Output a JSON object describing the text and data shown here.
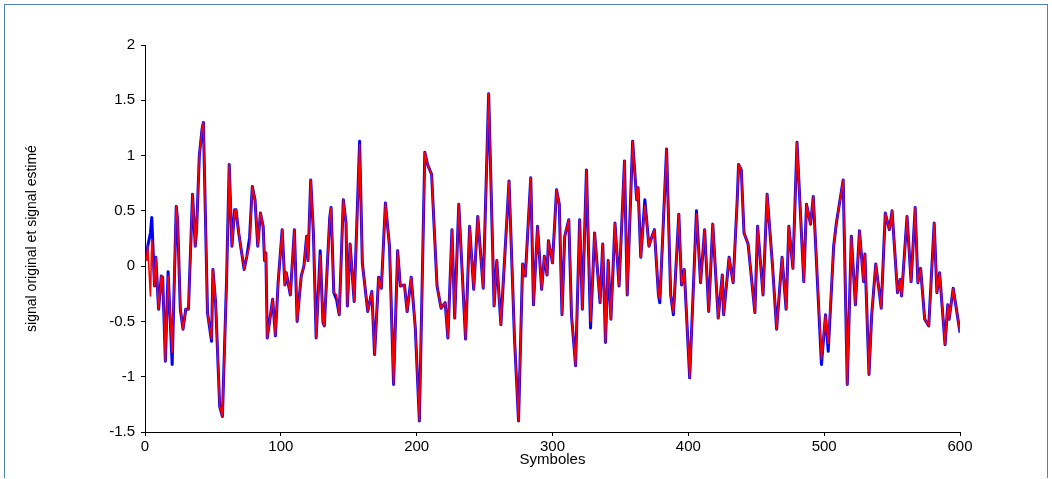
{
  "chart_data": {
    "type": "line",
    "xlabel": "Symboles",
    "ylabel": "signal original et signal estimé",
    "x": [
      1,
      2,
      4,
      5,
      7,
      8,
      10,
      12,
      13,
      15,
      17,
      20,
      23,
      24,
      26,
      28,
      30,
      32,
      35,
      37,
      38,
      40,
      42,
      43,
      46,
      49,
      50,
      52,
      55,
      57,
      60,
      62,
      64,
      66,
      67,
      69,
      73,
      75,
      77,
      79,
      81,
      83,
      85,
      87,
      88,
      89,
      90,
      94,
      96,
      98,
      101,
      103,
      104,
      107,
      110,
      112,
      115,
      117,
      119,
      120,
      122,
      124,
      126,
      129,
      131,
      132,
      136,
      137,
      139,
      141,
      143,
      146,
      148,
      149,
      151,
      154,
      158,
      160,
      164,
      167,
      169,
      172,
      174,
      177,
      180,
      183,
      186,
      188,
      191,
      193,
      196,
      199,
      202,
      206,
      208,
      211,
      215,
      218,
      221,
      223,
      226,
      228,
      231,
      236,
      239,
      242,
      245,
      249,
      253,
      257,
      259,
      262,
      265,
      268,
      272,
      275,
      278,
      280,
      284,
      286,
      289,
      292,
      294,
      296,
      297,
      300,
      303,
      305,
      307,
      309,
      312,
      314,
      317,
      320,
      322,
      325,
      328,
      331,
      335,
      337,
      339,
      341,
      343,
      346,
      349,
      353,
      355,
      359,
      362,
      363,
      365,
      368,
      371,
      373,
      375,
      378,
      379,
      384,
      387,
      389,
      393,
      395,
      397,
      401,
      406,
      409,
      412,
      415,
      418,
      422,
      425,
      426,
      430,
      433,
      436,
      437,
      439,
      441,
      444,
      449,
      451,
      455,
      458,
      462,
      465,
      469,
      472,
      474,
      477,
      480,
      485,
      487,
      490,
      492,
      498,
      501,
      503,
      507,
      509,
      514,
      517,
      520,
      523,
      526,
      529,
      530,
      533,
      535,
      538,
      542,
      545,
      548,
      550,
      554,
      556,
      557,
      561,
      564,
      567,
      569,
      571,
      574,
      577,
      581,
      583,
      585,
      589,
      591,
      592,
      595,
      600
    ],
    "series": [
      {
        "color": "#0000ff",
        "values": [
          0.05,
          0.18,
          0.3,
          0.44,
          -0.18,
          0.08,
          -0.39,
          -0.09,
          -0.1,
          -0.86,
          -0.05,
          -0.89,
          0.54,
          0.42,
          -0.39,
          -0.57,
          -0.39,
          -0.39,
          0.65,
          0.18,
          0.33,
          1.0,
          1.24,
          1.3,
          -0.42,
          -0.68,
          -0.03,
          -0.33,
          -1.27,
          -1.36,
          -0.15,
          0.92,
          0.18,
          0.51,
          0.51,
          0.3,
          -0.03,
          0.09,
          0.26,
          0.72,
          0.6,
          0.18,
          0.48,
          0.36,
          0.05,
          0.12,
          -0.65,
          -0.3,
          -0.63,
          -0.15,
          0.33,
          -0.17,
          -0.06,
          -0.26,
          0.33,
          -0.5,
          -0.09,
          0,
          0.27,
          0.05,
          0.78,
          0.3,
          -0.65,
          0.14,
          -0.51,
          -0.54,
          0.44,
          0.53,
          -0.24,
          -0.3,
          -0.44,
          0.6,
          0.39,
          -0.36,
          0.2,
          -0.32,
          1.13,
          0.03,
          -0.41,
          -0.23,
          -0.8,
          -0.1,
          -0.2,
          0.57,
          0.18,
          -1.07,
          0.14,
          -0.18,
          -0.17,
          -0.41,
          -0.1,
          -0.56,
          -1.4,
          1.03,
          0.92,
          0.83,
          -0.18,
          -0.38,
          -0.33,
          -0.65,
          0.33,
          -0.47,
          0.56,
          -0.66,
          0.36,
          -0.21,
          0.45,
          -0.2,
          1.56,
          -0.36,
          0.05,
          -0.53,
          0.12,
          0.77,
          -0.65,
          -1.4,
          0.02,
          -0.09,
          0.8,
          -0.35,
          0.36,
          -0.21,
          0.09,
          -0.08,
          0.23,
          0.03,
          0.69,
          0.56,
          -0.44,
          0.27,
          0.42,
          -0.45,
          -0.9,
          0.42,
          -0.39,
          0.87,
          -0.56,
          0.3,
          -0.33,
          0.2,
          -0.69,
          0.05,
          -0.48,
          0.39,
          -0.18,
          0.95,
          -0.26,
          1.13,
          0.6,
          0.71,
          0.08,
          0.6,
          0.18,
          0.26,
          0.33,
          -0.26,
          -0.33,
          1.06,
          -0.26,
          -0.44,
          0.47,
          -0.17,
          -0.03,
          -1.01,
          0.5,
          -0.15,
          0.33,
          -0.41,
          0.38,
          -0.47,
          -0.08,
          -0.44,
          0.08,
          -0.15,
          0.6,
          0.92,
          0.87,
          0.3,
          0.2,
          -0.42,
          0.36,
          -0.26,
          0.65,
          0,
          -0.57,
          0.08,
          -0.39,
          0.36,
          -0.02,
          1.12,
          -0.14,
          0.56,
          0.38,
          0.63,
          -0.89,
          -0.44,
          -0.77,
          0.18,
          0.39,
          0.78,
          -1.07,
          0.27,
          -0.35,
          0.32,
          -0.14,
          0.11,
          -0.98,
          -0.44,
          0.02,
          -0.38,
          0.48,
          0.33,
          0.5,
          -0.24,
          -0.12,
          -0.27,
          0.45,
          -0.14,
          0.53,
          -0.15,
          -0.02,
          -0.48,
          -0.54,
          0.39,
          -0.24,
          -0.06,
          -0.71,
          -0.35,
          -0.48,
          -0.2,
          -0.6
        ]
      },
      {
        "color": "#ff0000",
        "values": [
          0.05,
          0.18,
          -0.27,
          0.24,
          -0.18,
          0.08,
          -0.39,
          -0.09,
          -0.1,
          -0.86,
          -0.09,
          -0.78,
          0.54,
          0.42,
          -0.39,
          -0.57,
          -0.39,
          -0.39,
          0.65,
          0.18,
          0.33,
          1.0,
          1.24,
          1.3,
          -0.42,
          -0.66,
          -0.03,
          -0.33,
          -1.27,
          -1.36,
          -0.15,
          0.92,
          0.18,
          0.51,
          0.51,
          0.3,
          -0.03,
          0.09,
          0.18,
          0.72,
          0.6,
          0.18,
          0.48,
          0.36,
          0.05,
          0.12,
          -0.65,
          -0.3,
          -0.63,
          -0.15,
          0.33,
          -0.17,
          -0.06,
          -0.26,
          0.33,
          -0.5,
          -0.09,
          0,
          0.27,
          0.05,
          0.78,
          0.3,
          -0.65,
          0.1,
          -0.51,
          -0.54,
          0.44,
          0.53,
          -0.24,
          -0.26,
          -0.44,
          0.6,
          0.39,
          -0.36,
          0.2,
          -0.32,
          1.1,
          0.03,
          -0.41,
          -0.23,
          -0.8,
          -0.1,
          -0.2,
          0.57,
          0.18,
          -1.07,
          0.14,
          -0.18,
          -0.17,
          -0.41,
          -0.1,
          -0.56,
          -1.4,
          1.03,
          0.92,
          0.83,
          -0.18,
          -0.38,
          -0.33,
          -0.65,
          0.33,
          -0.47,
          0.56,
          -0.66,
          0.36,
          -0.21,
          0.45,
          -0.2,
          1.56,
          -0.36,
          0.05,
          -0.53,
          0.12,
          0.77,
          -0.65,
          -1.4,
          0.02,
          -0.09,
          0.8,
          -0.35,
          0.36,
          -0.21,
          0.09,
          -0.08,
          0.23,
          0.03,
          0.69,
          0.56,
          -0.44,
          0.27,
          0.42,
          -0.45,
          -0.9,
          0.42,
          -0.39,
          0.87,
          -0.5,
          0.3,
          -0.33,
          0.2,
          -0.69,
          0.05,
          -0.48,
          0.39,
          -0.18,
          0.95,
          -0.26,
          1.13,
          0.6,
          0.71,
          0.08,
          0.55,
          0.18,
          0.26,
          0.33,
          -0.26,
          -0.3,
          1.06,
          -0.26,
          -0.42,
          0.47,
          -0.17,
          -0.03,
          -1.01,
          0.47,
          -0.15,
          0.33,
          -0.41,
          0.38,
          -0.47,
          -0.08,
          -0.44,
          0.08,
          -0.15,
          0.6,
          0.92,
          0.87,
          0.3,
          0.2,
          -0.42,
          0.36,
          -0.26,
          0.65,
          0,
          -0.57,
          0.08,
          -0.39,
          0.36,
          -0.02,
          1.12,
          -0.14,
          0.56,
          0.38,
          0.63,
          -0.84,
          -0.44,
          -0.7,
          0.18,
          0.39,
          0.78,
          -1.07,
          0.27,
          -0.35,
          0.32,
          -0.14,
          0.11,
          -0.98,
          -0.44,
          0.02,
          -0.38,
          0.48,
          0.33,
          0.5,
          -0.24,
          -0.12,
          -0.27,
          0.45,
          -0.14,
          0.53,
          -0.15,
          -0.02,
          -0.48,
          -0.54,
          0.39,
          -0.24,
          -0.06,
          -0.71,
          -0.35,
          -0.48,
          -0.2,
          -0.6
        ]
      }
    ],
    "xlim": [
      0,
      600
    ],
    "xticks": [
      0,
      100,
      200,
      300,
      400,
      500,
      600
    ],
    "ylim": [
      -1.5,
      2
    ],
    "yticks": [
      -1.5,
      -1,
      -0.5,
      0,
      0.5,
      1,
      1.5,
      2
    ],
    "grid": false,
    "legend": false,
    "marker": "none",
    "line_style": "solid"
  }
}
